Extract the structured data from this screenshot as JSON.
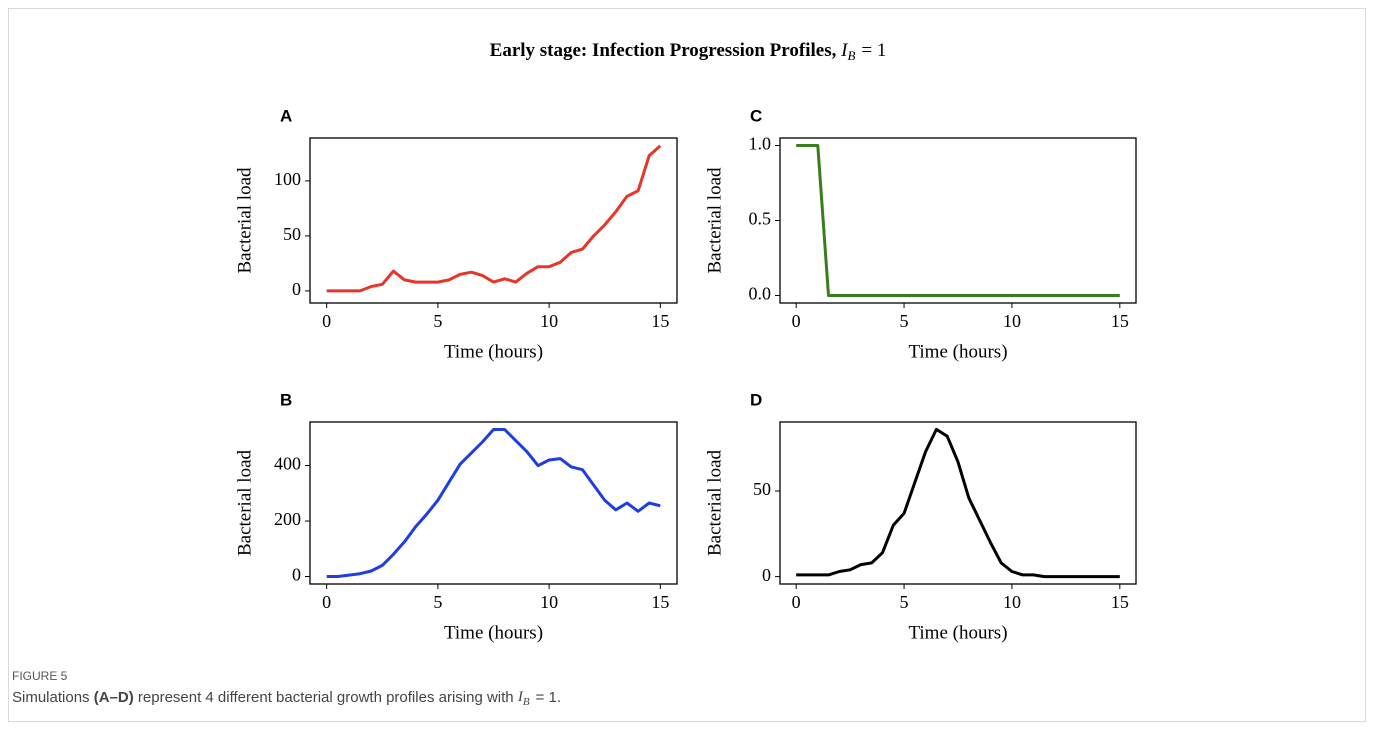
{
  "figure": {
    "title": "Early stage: Infection Progression Profiles,",
    "title_var": "I",
    "title_sub": "B",
    "title_rest": "= 1"
  },
  "chart_data": [
    {
      "type": "line",
      "panel": "A",
      "xlabel": "Time (hours)",
      "ylabel": "Bacterial load",
      "color": "#e8352a",
      "x": [
        0,
        0.5,
        1,
        1.5,
        2,
        2.5,
        3,
        3.5,
        4,
        4.5,
        5,
        5.5,
        6,
        6.5,
        7,
        7.5,
        8,
        8.5,
        9,
        9.5,
        10,
        10.5,
        11,
        11.5,
        12,
        12.5,
        13,
        13.5,
        14,
        14.5,
        15
      ],
      "values": [
        0,
        0,
        0,
        0,
        4,
        6,
        18,
        10,
        8,
        8,
        8,
        10,
        15,
        17,
        14,
        8,
        11,
        8,
        16,
        22,
        22,
        26,
        35,
        38,
        50,
        60,
        72,
        86,
        91,
        123,
        132
      ],
      "xlim": [
        -0.75,
        15.75
      ],
      "xticks": [
        0,
        5,
        10,
        15
      ],
      "ylim": [
        -11,
        139
      ],
      "yticks": [
        0,
        50,
        100
      ]
    },
    {
      "type": "line",
      "panel": "C",
      "xlabel": "Time (hours)",
      "ylabel": "Bacterial load",
      "color": "#3a7d1e",
      "x": [
        0,
        0.5,
        1,
        1.5,
        2,
        2.5,
        3,
        3.5,
        4,
        4.5,
        5,
        5.5,
        6,
        6.5,
        7,
        7.5,
        8,
        8.5,
        9,
        9.5,
        10,
        10.5,
        11,
        11.5,
        12,
        12.5,
        13,
        13.5,
        14,
        14.5,
        15
      ],
      "values": [
        1,
        1,
        1,
        0,
        0,
        0,
        0,
        0,
        0,
        0,
        0,
        0,
        0,
        0,
        0,
        0,
        0,
        0,
        0,
        0,
        0,
        0,
        0,
        0,
        0,
        0,
        0,
        0,
        0,
        0,
        0
      ],
      "xlim": [
        -0.75,
        15.75
      ],
      "xticks": [
        0,
        5,
        10,
        15
      ],
      "ylim": [
        -0.05,
        1.05
      ],
      "yticks": [
        {
          "value": 0,
          "label": "0.0"
        },
        0.5,
        {
          "value": 1,
          "label": "1.0"
        }
      ]
    },
    {
      "type": "line",
      "panel": "B",
      "xlabel": "Time (hours)",
      "ylabel": "Bacterial load",
      "color": "#1f3de0",
      "x": [
        0,
        0.5,
        1,
        1.5,
        2,
        2.5,
        3,
        3.5,
        4,
        4.5,
        5,
        5.5,
        6,
        6.5,
        7,
        7.5,
        8,
        8.5,
        9,
        9.5,
        10,
        10.5,
        11,
        11.5,
        12,
        12.5,
        13,
        13.5,
        14,
        14.5,
        15
      ],
      "values": [
        0,
        0,
        5,
        10,
        20,
        40,
        80,
        125,
        180,
        225,
        275,
        340,
        405,
        445,
        485,
        530,
        530,
        490,
        450,
        400,
        420,
        425,
        395,
        385,
        330,
        275,
        240,
        265,
        235,
        265,
        255
      ],
      "xlim": [
        -0.75,
        15.75
      ],
      "xticks": [
        0,
        5,
        10,
        15
      ],
      "ylim": [
        -27,
        557
      ],
      "yticks": [
        0,
        200,
        400
      ]
    },
    {
      "type": "line",
      "panel": "D",
      "xlabel": "Time (hours)",
      "ylabel": "Bacterial load",
      "color": "#000000",
      "x": [
        0,
        0.5,
        1,
        1.5,
        2,
        2.5,
        3,
        3.5,
        4,
        4.5,
        5,
        5.5,
        6,
        6.5,
        7,
        7.5,
        8,
        8.5,
        9,
        9.5,
        10,
        10.5,
        11,
        11.5,
        12,
        12.5,
        13,
        13.5,
        14,
        14.5,
        15
      ],
      "values": [
        1,
        1,
        1,
        1,
        3,
        4,
        7,
        8,
        14,
        30,
        37,
        55,
        73,
        86,
        82,
        67,
        46,
        33,
        20,
        8,
        3,
        1,
        1,
        0,
        0,
        0,
        0,
        0,
        0,
        0,
        0
      ],
      "xlim": [
        -0.75,
        15.75
      ],
      "xticks": [
        0,
        5,
        10,
        15
      ],
      "ylim": [
        -4.3,
        90.3
      ],
      "yticks": [
        0,
        50
      ]
    }
  ],
  "caption": {
    "label": "FIGURE 5",
    "text_start": "Simulations",
    "panels": "(A–D)",
    "text_mid": "represent 4 different bacterial growth profiles arising with",
    "var": "I",
    "sub": "B",
    "rest": "= 1."
  }
}
